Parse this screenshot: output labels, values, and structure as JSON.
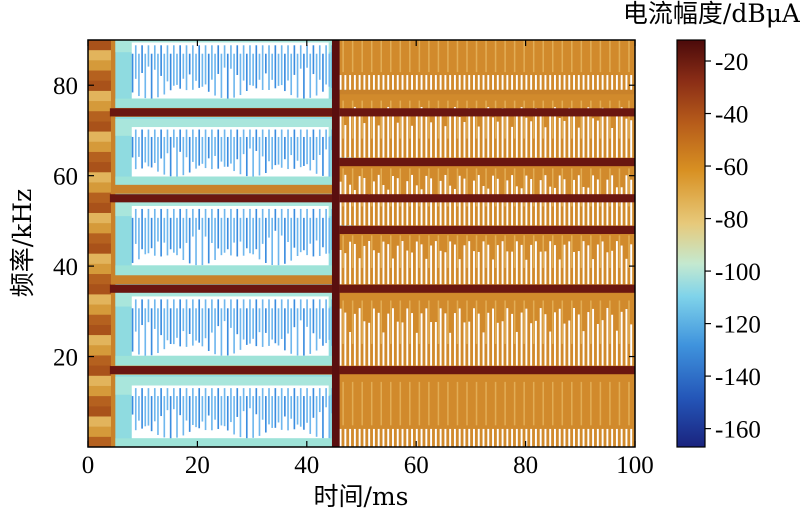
{
  "chart_data": {
    "type": "heatmap",
    "xlabel": "时间/ms",
    "ylabel": "频率/kHz",
    "colorbar_label": "电流幅度/dBμA",
    "xlim": [
      0,
      100
    ],
    "ylim": [
      0,
      90
    ],
    "x_ticks": [
      "0",
      "20",
      "40",
      "60",
      "80",
      "100"
    ],
    "x_tick_values": [
      0,
      20,
      40,
      60,
      80,
      100
    ],
    "y_ticks": [
      "20",
      "40",
      "60",
      "80"
    ],
    "y_tick_values": [
      20,
      40,
      60,
      80
    ],
    "colorbar": {
      "ticks": [
        "-20",
        "-40",
        "-60",
        "-80",
        "-100",
        "-120",
        "-140",
        "-160"
      ],
      "tick_values": [
        -20,
        -40,
        -60,
        -80,
        -100,
        -120,
        -140,
        -160
      ],
      "range": [
        -167,
        -12
      ],
      "colormap": [
        "#1f2f8f",
        "#2f73c8",
        "#72cfe8",
        "#b8e8d6",
        "#e8c678",
        "#d4901e",
        "#a0421c",
        "#5a0f0f"
      ]
    },
    "regions": [
      {
        "label": "left bands",
        "x_range": [
          5,
          46
        ],
        "band_ranges_kHz": [
          [
            0,
            16
          ],
          [
            18,
            36
          ],
          [
            38,
            56
          ],
          [
            58,
            73
          ],
          [
            75,
            92
          ]
        ],
        "level_dBuA": -120
      },
      {
        "label": "right bands",
        "x_range": [
          46,
          100
        ],
        "band_ranges_kHz": [
          [
            0,
            16
          ],
          [
            18,
            34
          ],
          [
            36,
            48
          ],
          [
            49,
            63
          ],
          [
            64,
            78
          ],
          [
            79,
            92
          ]
        ],
        "level_dBuA": -78
      }
    ],
    "dark_lines_kHz": [
      17,
      35,
      55,
      74,
      63,
      48
    ]
  }
}
